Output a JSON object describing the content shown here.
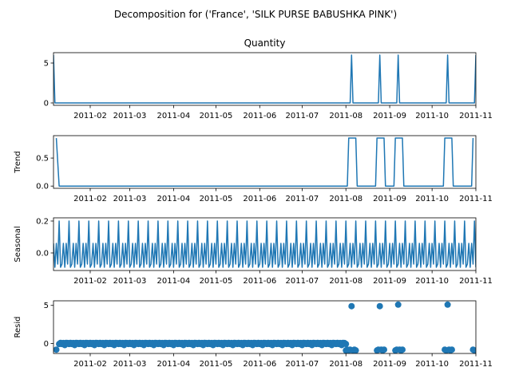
{
  "figure": {
    "suptitle": "Decomposition for ('France', 'SILK PURSE BABUSHKA PINK')",
    "line_color": "#1f77b4"
  },
  "chart_data": [
    {
      "type": "line",
      "title": "Quantity",
      "ylabel": "",
      "x_range": [
        "2011-01-06",
        "2011-11-01"
      ],
      "x_ticks": [
        "2011-02",
        "2011-03",
        "2011-04",
        "2011-05",
        "2011-06",
        "2011-07",
        "2011-08",
        "2011-09",
        "2011-10",
        "2011-11"
      ],
      "y_range": [
        -0.3,
        6.3
      ],
      "y_ticks": [
        "0",
        "5"
      ],
      "points": [
        {
          "x": "2011-01-06",
          "y": 6
        },
        {
          "x": "2011-01-07",
          "y": 0
        },
        {
          "x": "2011-08-04",
          "y": 0
        },
        {
          "x": "2011-08-05",
          "y": 6
        },
        {
          "x": "2011-08-06",
          "y": 0
        },
        {
          "x": "2011-08-24",
          "y": 0
        },
        {
          "x": "2011-08-25",
          "y": 6
        },
        {
          "x": "2011-08-26",
          "y": 0
        },
        {
          "x": "2011-09-06",
          "y": 0
        },
        {
          "x": "2011-09-07",
          "y": 6
        },
        {
          "x": "2011-09-08",
          "y": 0
        },
        {
          "x": "2011-10-11",
          "y": 0
        },
        {
          "x": "2011-10-12",
          "y": 6
        },
        {
          "x": "2011-10-13",
          "y": 0
        },
        {
          "x": "2011-10-31",
          "y": 0
        },
        {
          "x": "2011-11-01",
          "y": 6
        }
      ]
    },
    {
      "type": "line",
      "title": "",
      "ylabel": "Trend",
      "x_range": [
        "2011-01-06",
        "2011-11-01"
      ],
      "x_ticks": [
        "2011-02",
        "2011-03",
        "2011-04",
        "2011-05",
        "2011-06",
        "2011-07",
        "2011-08",
        "2011-09",
        "2011-10",
        "2011-11"
      ],
      "y_range": [
        -0.04,
        0.9
      ],
      "y_ticks": [
        "0.0",
        "0.5"
      ],
      "points": [
        {
          "x": "2011-01-08",
          "y": 0.857
        },
        {
          "x": "2011-01-10",
          "y": 0
        },
        {
          "x": "2011-08-02",
          "y": 0
        },
        {
          "x": "2011-08-03",
          "y": 0.857
        },
        {
          "x": "2011-08-08",
          "y": 0.857
        },
        {
          "x": "2011-08-09",
          "y": 0
        },
        {
          "x": "2011-08-22",
          "y": 0
        },
        {
          "x": "2011-08-23",
          "y": 0.857
        },
        {
          "x": "2011-08-28",
          "y": 0.857
        },
        {
          "x": "2011-08-29",
          "y": 0
        },
        {
          "x": "2011-09-04",
          "y": 0
        },
        {
          "x": "2011-09-05",
          "y": 0.857
        },
        {
          "x": "2011-09-10",
          "y": 0.857
        },
        {
          "x": "2011-09-11",
          "y": 0
        },
        {
          "x": "2011-10-09",
          "y": 0
        },
        {
          "x": "2011-10-10",
          "y": 0.857
        },
        {
          "x": "2011-10-15",
          "y": 0.857
        },
        {
          "x": "2011-10-16",
          "y": 0
        },
        {
          "x": "2011-10-29",
          "y": 0
        },
        {
          "x": "2011-10-30",
          "y": 0.857
        }
      ]
    },
    {
      "type": "line",
      "title": "",
      "ylabel": "Seasonal",
      "x_range": [
        "2011-01-06",
        "2011-11-01"
      ],
      "x_ticks": [
        "2011-02",
        "2011-03",
        "2011-04",
        "2011-05",
        "2011-06",
        "2011-07",
        "2011-08",
        "2011-09",
        "2011-10",
        "2011-11"
      ],
      "y_range": [
        -0.11,
        0.22
      ],
      "y_ticks": [
        "0.0",
        "0.2"
      ],
      "period_days": 7,
      "weekly_pattern": [
        0.06,
        -0.09,
        0.06,
        -0.07,
        0.2,
        -0.09,
        -0.07
      ]
    },
    {
      "type": "scatter",
      "title": "",
      "ylabel": "Resid",
      "x_range": [
        "2011-01-06",
        "2011-11-01"
      ],
      "x_ticks": [
        "2011-02",
        "2011-03",
        "2011-04",
        "2011-05",
        "2011-06",
        "2011-07",
        "2011-08",
        "2011-09",
        "2011-10",
        "2011-11"
      ],
      "y_range": [
        -1.3,
        5.6
      ],
      "y_ticks": [
        "0",
        "5"
      ],
      "baseline_range": [
        "2011-01-10",
        "2011-08-01"
      ],
      "weekly_pattern": [
        -0.06,
        0.09,
        -0.06,
        0.07,
        -0.2,
        0.09,
        0.07
      ],
      "points": [
        {
          "x": "2011-01-08",
          "y": -0.8
        },
        {
          "x": "2011-08-01",
          "y": -0.9
        },
        {
          "x": "2011-08-02",
          "y": -0.8
        },
        {
          "x": "2011-08-03",
          "y": -0.9
        },
        {
          "x": "2011-08-04",
          "y": -0.8
        },
        {
          "x": "2011-08-05",
          "y": 4.9
        },
        {
          "x": "2011-08-06",
          "y": -0.9
        },
        {
          "x": "2011-08-07",
          "y": -0.8
        },
        {
          "x": "2011-08-08",
          "y": -0.9
        },
        {
          "x": "2011-08-23",
          "y": -0.9
        },
        {
          "x": "2011-08-24",
          "y": -0.8
        },
        {
          "x": "2011-08-25",
          "y": 4.9
        },
        {
          "x": "2011-08-26",
          "y": -0.8
        },
        {
          "x": "2011-08-27",
          "y": -0.9
        },
        {
          "x": "2011-08-28",
          "y": -0.8
        },
        {
          "x": "2011-09-05",
          "y": -0.9
        },
        {
          "x": "2011-09-06",
          "y": -0.8
        },
        {
          "x": "2011-09-07",
          "y": 5.1
        },
        {
          "x": "2011-09-08",
          "y": -0.8
        },
        {
          "x": "2011-09-09",
          "y": -0.9
        },
        {
          "x": "2011-09-10",
          "y": -0.8
        },
        {
          "x": "2011-10-10",
          "y": -0.8
        },
        {
          "x": "2011-10-11",
          "y": -0.9
        },
        {
          "x": "2011-10-12",
          "y": 5.1
        },
        {
          "x": "2011-10-13",
          "y": -0.8
        },
        {
          "x": "2011-10-14",
          "y": -0.9
        },
        {
          "x": "2011-10-15",
          "y": -0.8
        },
        {
          "x": "2011-10-30",
          "y": -0.8
        },
        {
          "x": "2011-10-31",
          "y": -0.9
        }
      ]
    }
  ]
}
